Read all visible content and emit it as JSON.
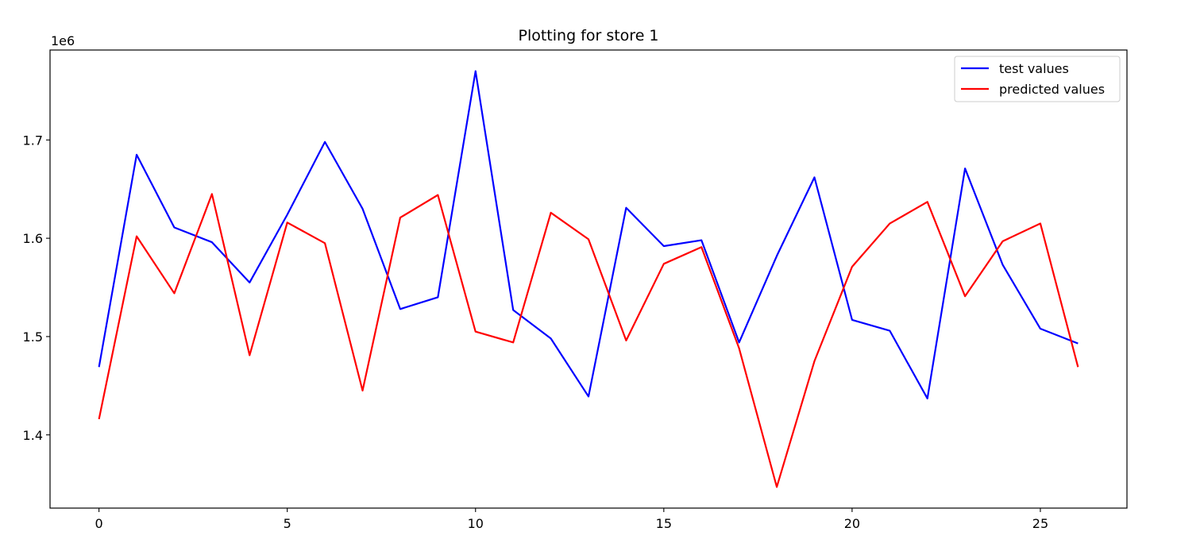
{
  "chart_data": {
    "type": "line",
    "title": "Plotting for store 1",
    "xlabel": "",
    "ylabel": "",
    "y_offset_label": "1e6",
    "xlim": [
      -1.3,
      27.3
    ],
    "ylim": [
      1.3255,
      1.7915
    ],
    "x_ticks": [
      0,
      5,
      10,
      15,
      20,
      25
    ],
    "x_tick_labels": [
      "0",
      "5",
      "10",
      "15",
      "20",
      "25"
    ],
    "y_ticks": [
      1.4,
      1.5,
      1.6,
      1.7
    ],
    "y_tick_labels": [
      "1.4",
      "1.5",
      "1.6",
      "1.7"
    ],
    "grid": false,
    "legend_position": "top-right",
    "x": [
      0,
      1,
      2,
      3,
      4,
      5,
      6,
      7,
      8,
      9,
      10,
      11,
      12,
      13,
      14,
      15,
      16,
      17,
      18,
      19,
      20,
      21,
      22,
      23,
      24,
      25,
      26
    ],
    "series": [
      {
        "name": "test values",
        "color": "#0000ff",
        "values": [
          1.469,
          1.685,
          1.611,
          1.596,
          1.555,
          1.624,
          1.698,
          1.63,
          1.528,
          1.54,
          1.77,
          1.527,
          1.498,
          1.439,
          1.631,
          1.592,
          1.598,
          1.494,
          1.582,
          1.662,
          1.517,
          1.506,
          1.437,
          1.671,
          1.573,
          1.508,
          1.493
        ]
      },
      {
        "name": "predicted values",
        "color": "#ff0000",
        "values": [
          1.416,
          1.602,
          1.544,
          1.645,
          1.481,
          1.616,
          1.595,
          1.445,
          1.621,
          1.644,
          1.505,
          1.494,
          1.626,
          1.599,
          1.496,
          1.574,
          1.591,
          1.488,
          1.347,
          1.475,
          1.571,
          1.615,
          1.637,
          1.541,
          1.597,
          1.615,
          1.469
        ]
      }
    ]
  }
}
